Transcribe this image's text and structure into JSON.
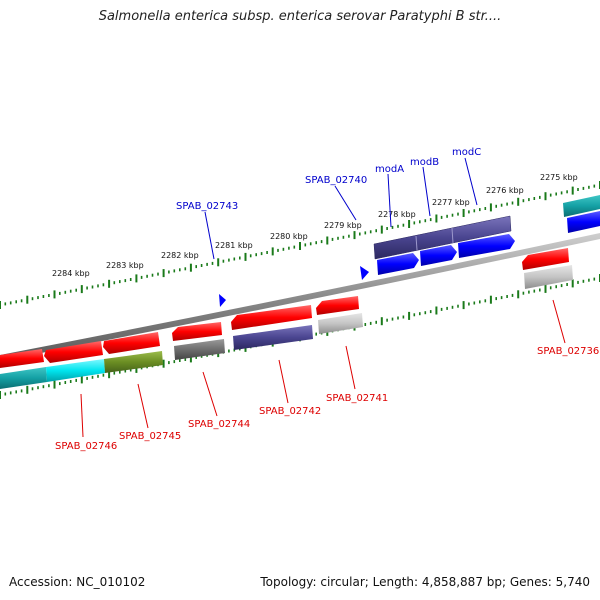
{
  "title": "Salmonella enterica subsp. enterica serovar Paratyphi B str....",
  "footer": {
    "accession": "Accession: NC_010102",
    "stats": "Topology: circular; Length: 4,858,887 bp; Genes: 5,740"
  },
  "scale_labels": {
    "k2284": "2284 kbp",
    "k2283": "2283 kbp",
    "k2282": "2282 kbp",
    "k2281": "2281 kbp",
    "k2280": "2280 kbp",
    "k2279": "2279 kbp",
    "k2278": "2278 kbp",
    "k2277": "2277 kbp",
    "k2276": "2276 kbp",
    "k2275": "2275 kbp"
  },
  "genes": {
    "SPAB_02743": "SPAB_02743",
    "SPAB_02740": "SPAB_02740",
    "modA": "modA",
    "modB": "modB",
    "modC": "modC",
    "SPAB_02746": "SPAB_02746",
    "SPAB_02745": "SPAB_02745",
    "SPAB_02744": "SPAB_02744",
    "SPAB_02742": "SPAB_02742",
    "SPAB_02741": "SPAB_02741",
    "SPAB_02736": "SPAB_02736"
  },
  "colors": {
    "forward_gene": "#ff0000",
    "cyan_track": "#00e5ee",
    "olive_track": "#6b8e23",
    "grey_track": "#6e6e6e",
    "navy_track": "#4a4590",
    "blue_track": "#0000ff",
    "backbone": "#8a8a8a",
    "tick": "#1a7a1a",
    "label_blue": "#0000cc",
    "label_red": "#dd0000"
  }
}
